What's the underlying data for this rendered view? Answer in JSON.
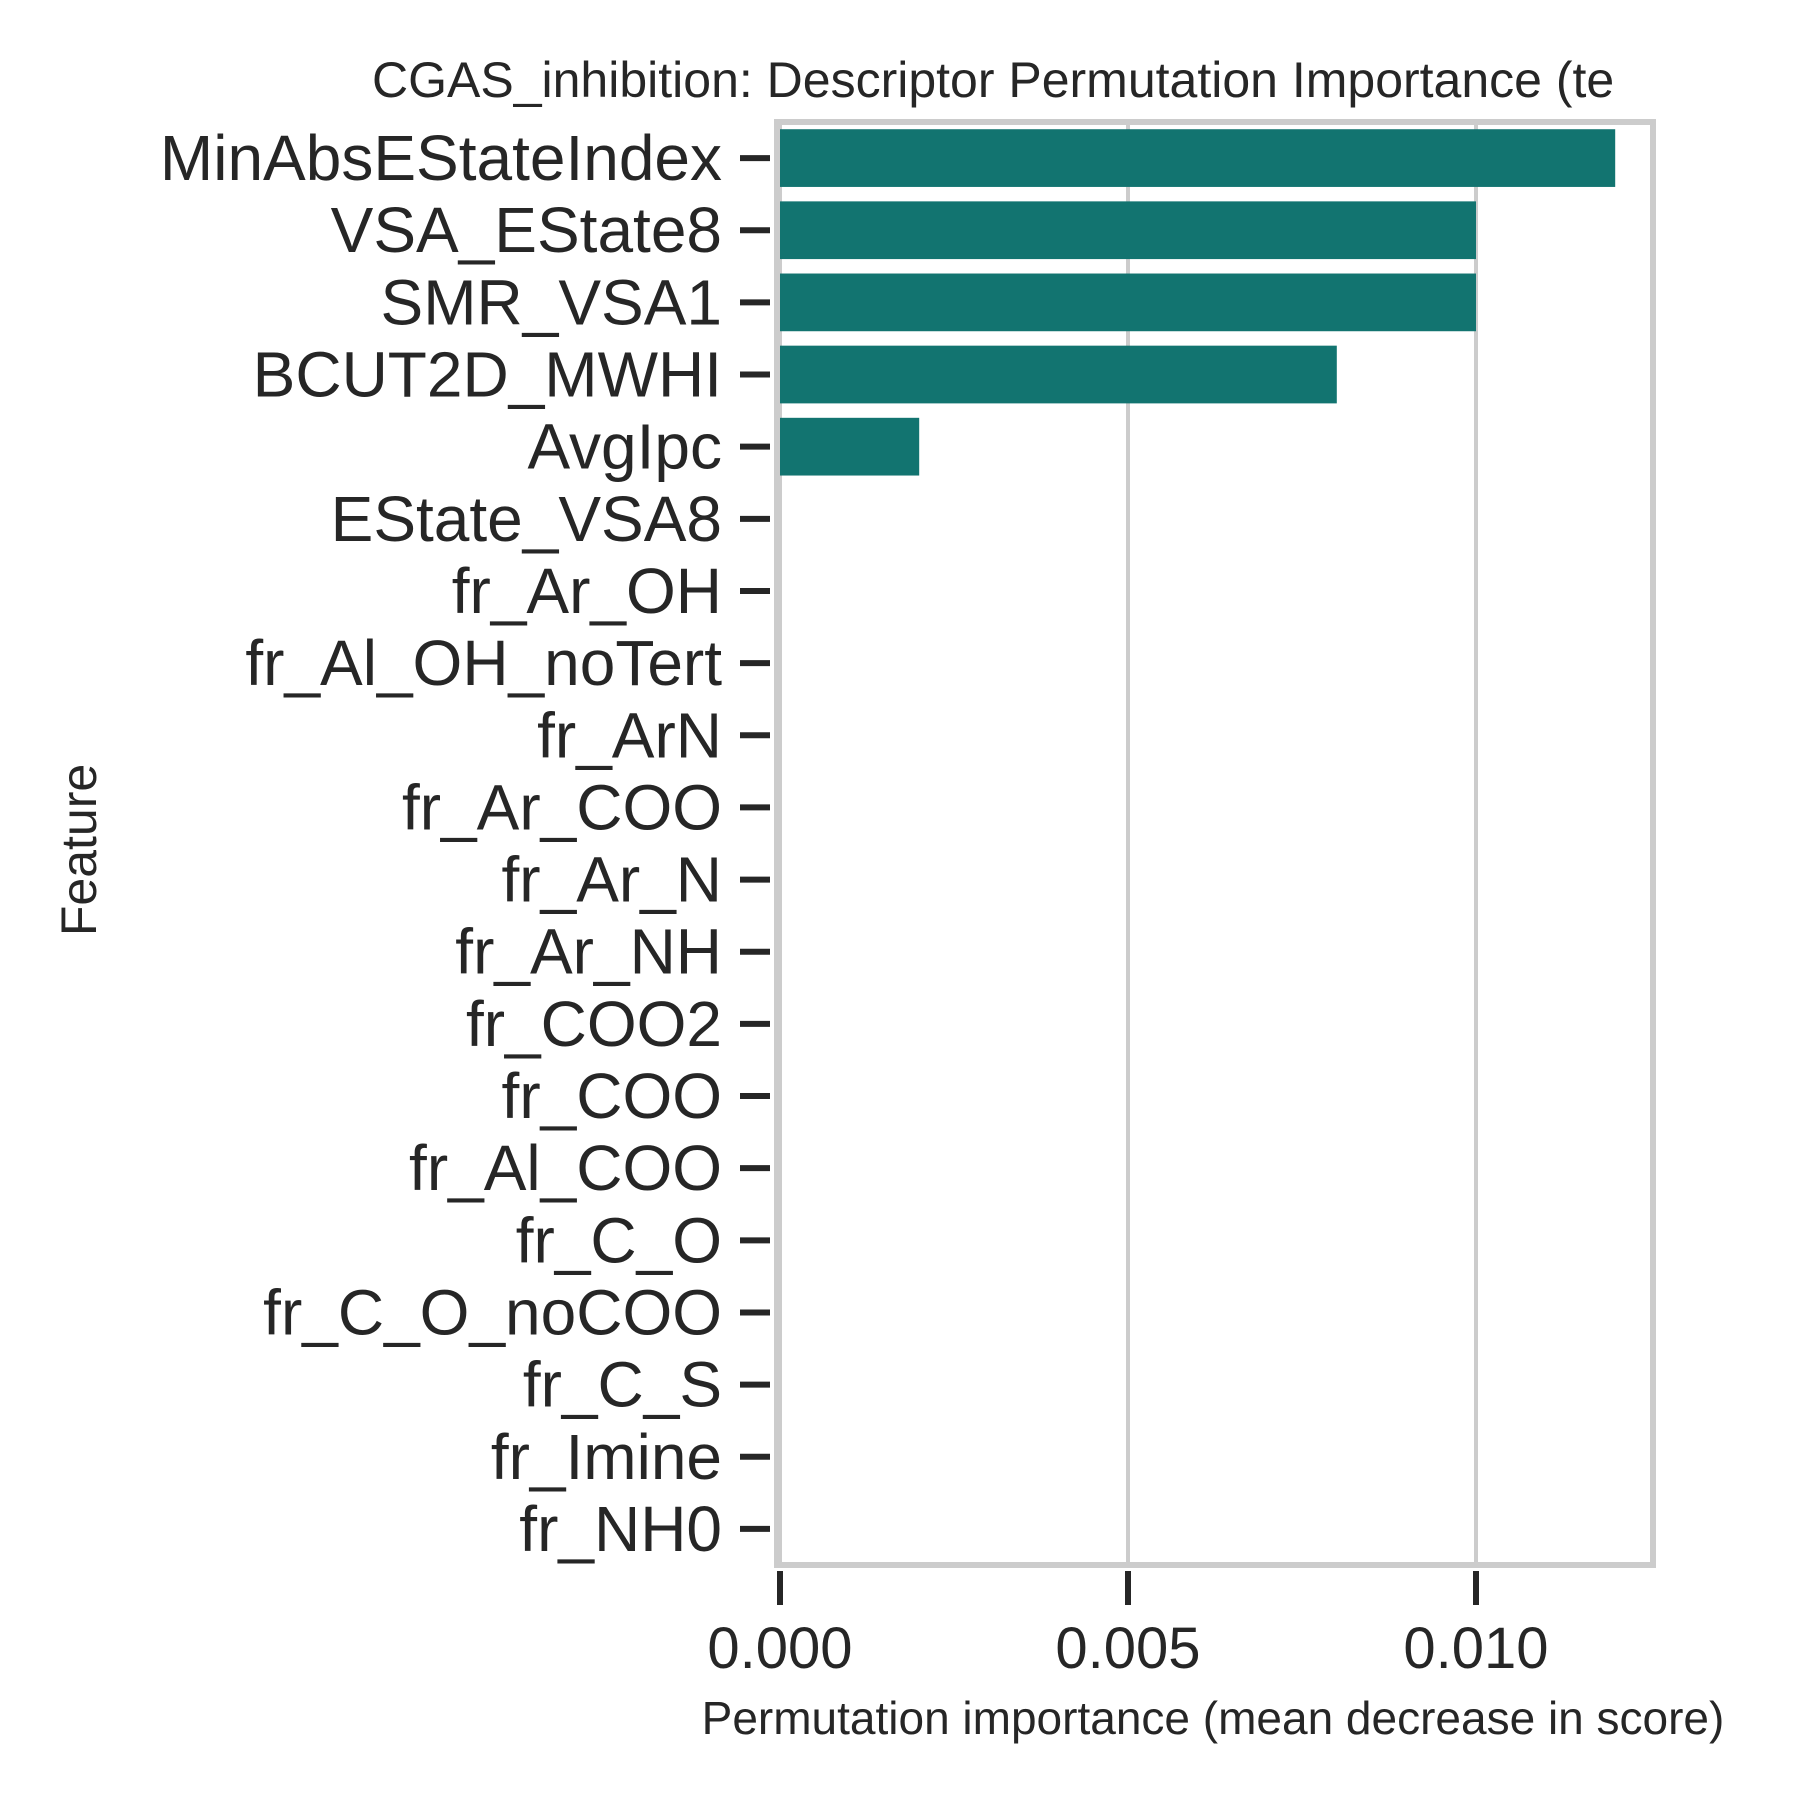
{
  "chart_data": {
    "type": "bar",
    "orientation": "horizontal",
    "title": "CGAS_inhibition: Descriptor Permutation Importance (te",
    "xlabel": "Permutation importance (mean decrease in score)",
    "ylabel": "Feature",
    "categories": [
      "MinAbsEStateIndex",
      "VSA_EState8",
      "SMR_VSA1",
      "BCUT2D_MWHI",
      "AvgIpc",
      "EState_VSA8",
      "fr_Ar_OH",
      "fr_Al_OH_noTert",
      "fr_ArN",
      "fr_Ar_COO",
      "fr_Ar_N",
      "fr_Ar_NH",
      "fr_COO2",
      "fr_COO",
      "fr_Al_COO",
      "fr_C_O",
      "fr_C_O_noCOO",
      "fr_C_S",
      "fr_Imine",
      "fr_NH0"
    ],
    "values": [
      0.012,
      0.01,
      0.01,
      0.008,
      0.002,
      0,
      0,
      0,
      0,
      0,
      0,
      0,
      0,
      0,
      0,
      0,
      0,
      0,
      0,
      0
    ],
    "xlim": [
      0,
      0.0126
    ],
    "xticks": [
      0.0,
      0.005,
      0.01
    ],
    "xtick_labels": [
      "0.000",
      "0.005",
      "0.010"
    ],
    "grid": "vertical",
    "legend": "none",
    "colors": {
      "bar": "#127470",
      "grid": "#cccccc",
      "frame": "#cccccc",
      "text": "#262626"
    }
  }
}
